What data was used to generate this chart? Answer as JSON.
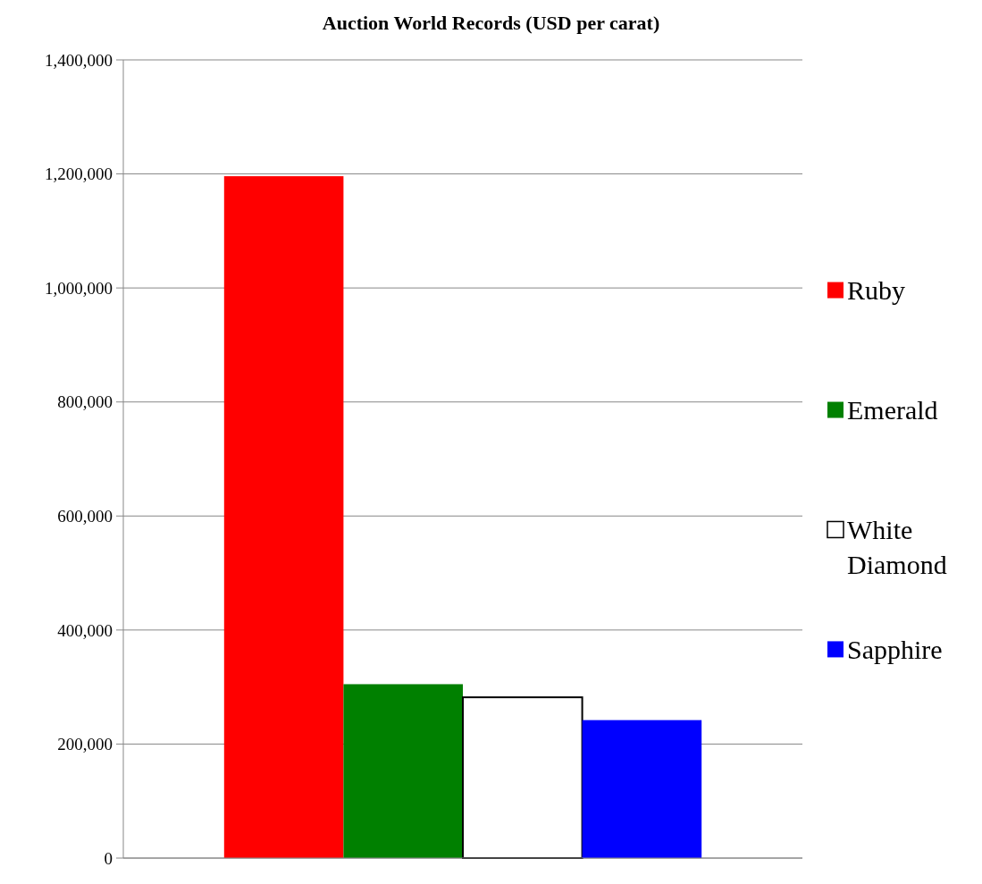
{
  "chart_data": {
    "type": "bar",
    "title": "Auction World Records (USD per carat)",
    "categories": [
      null
    ],
    "series": [
      {
        "name": "Ruby",
        "color": "#ff0000",
        "values": [
          1196000
        ]
      },
      {
        "name": "Emerald",
        "color": "#008000",
        "values": [
          305000
        ]
      },
      {
        "name": "White Diamond",
        "color": "#ffffff",
        "values": [
          282000
        ]
      },
      {
        "name": "Sapphire",
        "color": "#0000ff",
        "values": [
          242000
        ]
      }
    ],
    "ylim": [
      0,
      1400000
    ],
    "yticks": [
      {
        "value": 0,
        "label": "0"
      },
      {
        "value": 200000,
        "label": "200,000"
      },
      {
        "value": 400000,
        "label": "400,000"
      },
      {
        "value": 600000,
        "label": "600,000"
      },
      {
        "value": 800000,
        "label": "800,000"
      },
      {
        "value": 1000000,
        "label": "1,000,000"
      },
      {
        "value": 1200000,
        "label": "1,200,000"
      },
      {
        "value": 1400000,
        "label": "1,400,000"
      }
    ],
    "grid": "y",
    "legend": "right"
  }
}
